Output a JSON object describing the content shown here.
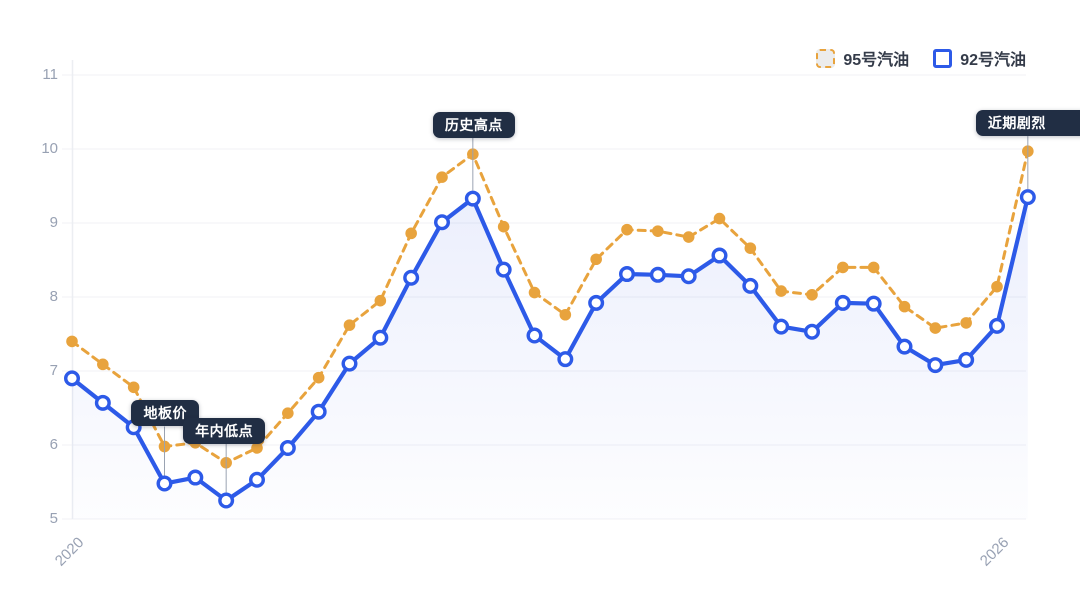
{
  "legend": {
    "items": [
      {
        "label": "95号汽油",
        "color": "#E8A33D",
        "line_style": "dashed"
      },
      {
        "label": "92号汽油",
        "color": "#2D5AE8",
        "line_style": "solid"
      }
    ]
  },
  "colors": {
    "series_95": "#E8A33D",
    "series_92": "#2D5AE8",
    "area_fill_top": "rgba(67,98,230,0.10)",
    "area_fill_bottom": "rgba(67,98,230,0.01)",
    "grid": "#f0f1f5",
    "axis_line": "#eceef2",
    "axis_text": "#98a1b3",
    "callout_bg": "#212e44",
    "callout_text": "#ffffff",
    "connector": "#9aa3b2"
  },
  "chart_data": {
    "type": "line",
    "title": "",
    "ylim": [
      5,
      11
    ],
    "y_ticks": [
      5,
      6,
      7,
      8,
      9,
      10,
      11
    ],
    "grid": true,
    "legend_position": "top-right",
    "x_axis": {
      "tick_labels": [
        {
          "label": "2020",
          "index": 0
        },
        {
          "label": "2026",
          "index": 30
        }
      ],
      "rotation_deg": -45
    },
    "series": [
      {
        "name": "95号汽油",
        "color": "#E8A33D",
        "dashed": true,
        "marker": "filled-dot",
        "area": false,
        "values": [
          7.4,
          7.09,
          6.78,
          5.98,
          6.03,
          5.76,
          5.96,
          6.43,
          6.91,
          7.62,
          7.95,
          8.86,
          9.62,
          9.93,
          8.95,
          8.06,
          7.76,
          8.51,
          8.91,
          8.89,
          8.81,
          9.06,
          8.66,
          8.08,
          8.03,
          8.4,
          8.4,
          7.87,
          7.58,
          7.65,
          8.14,
          9.97
        ]
      },
      {
        "name": "92号汽油",
        "color": "#2D5AE8",
        "dashed": false,
        "marker": "open-dot",
        "area": true,
        "values": [
          6.9,
          6.57,
          6.24,
          5.48,
          5.56,
          5.25,
          5.53,
          5.96,
          6.45,
          7.1,
          7.45,
          8.26,
          9.01,
          9.33,
          8.37,
          7.48,
          7.16,
          7.92,
          8.31,
          8.3,
          8.28,
          8.56,
          8.15,
          7.6,
          7.53,
          7.92,
          7.91,
          7.33,
          7.08,
          7.15,
          7.61,
          9.35
        ]
      }
    ],
    "annotations": [
      {
        "id": "floor-price",
        "label": "地板价",
        "series": "92号汽油",
        "index": 3,
        "value": 5.48,
        "box_dx": -33,
        "box_dy": -83,
        "clipped": false
      },
      {
        "id": "year-low",
        "label": "年内低点",
        "series": "92号汽油",
        "index": 5,
        "value": 5.25,
        "box_dx": -43,
        "box_dy": -83,
        "clipped": false
      },
      {
        "id": "historical-high",
        "label": "历史高点",
        "series": "92号汽油",
        "index": 13,
        "value": 9.33,
        "box_dx": -40,
        "box_dy": -87,
        "clipped": false
      },
      {
        "id": "recent-volatility",
        "label": "近期剧烈",
        "series": "92号汽油",
        "index": 31,
        "value": 9.35,
        "box_dx": -52,
        "box_dy": -87,
        "clipped": true
      }
    ]
  }
}
